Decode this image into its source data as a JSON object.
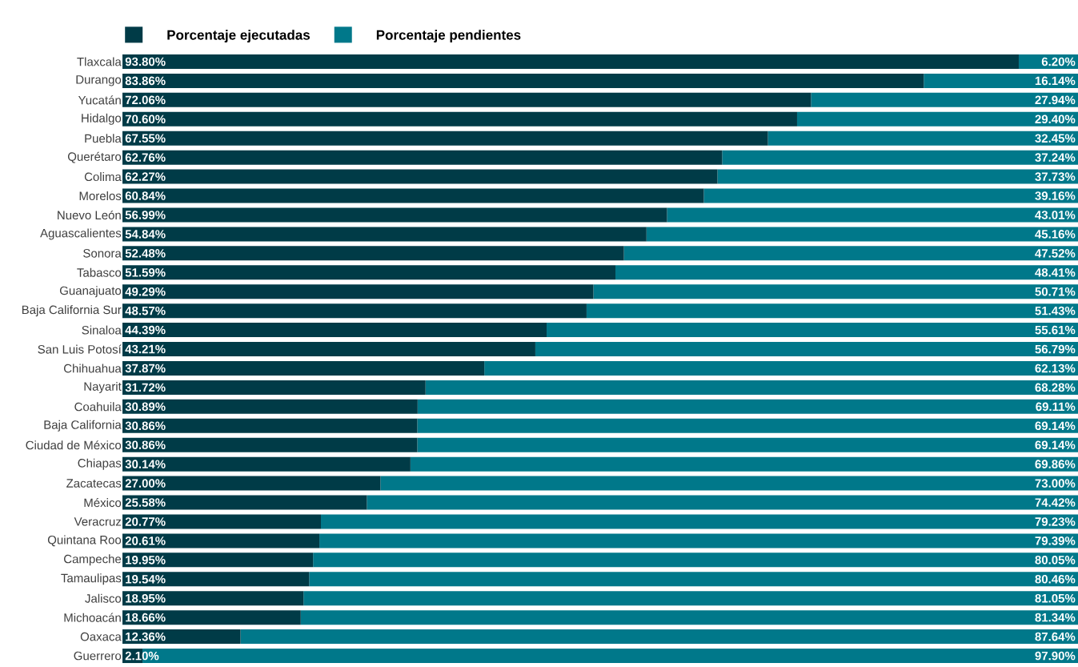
{
  "chart_data": {
    "type": "bar",
    "orientation": "horizontal",
    "stacked": true,
    "legend": "top",
    "tick_labels": "y",
    "xlim": [
      0,
      100
    ],
    "categories": [
      "Tlaxcala",
      "Durango",
      "Yucatán",
      "Hidalgo",
      "Puebla",
      "Querétaro",
      "Colima",
      "Morelos",
      "Nuevo León",
      "Aguascalientes",
      "Sonora",
      "Tabasco",
      "Guanajuato",
      "Baja California Sur",
      "Sinaloa",
      "San Luis Potosí",
      "Chihuahua",
      "Nayarit",
      "Coahuila",
      "Baja California",
      "Ciudad de México",
      "Chiapas",
      "Zacatecas",
      "México",
      "Veracruz",
      "Quintana Roo",
      "Campeche",
      "Tamaulipas",
      "Jalisco",
      "Michoacán",
      "Oaxaca",
      "Guerrero"
    ],
    "series": [
      {
        "name": "Porcentaje ejecutadas",
        "color": "#003b47",
        "values": [
          93.8,
          83.86,
          72.06,
          70.6,
          67.55,
          62.76,
          62.27,
          60.84,
          56.99,
          54.84,
          52.48,
          51.59,
          49.29,
          48.57,
          44.39,
          43.21,
          37.87,
          31.72,
          30.89,
          30.86,
          30.86,
          30.14,
          27.0,
          25.58,
          20.77,
          20.61,
          19.95,
          19.54,
          18.95,
          18.66,
          12.36,
          2.1
        ],
        "value_labels": [
          "93.80%",
          "83.86%",
          "72.06%",
          "70.60%",
          "67.55%",
          "62.76%",
          "62.27%",
          "60.84%",
          "56.99%",
          "54.84%",
          "52.48%",
          "51.59%",
          "49.29%",
          "48.57%",
          "44.39%",
          "43.21%",
          "37.87%",
          "31.72%",
          "30.89%",
          "30.86%",
          "30.86%",
          "30.14%",
          "27.00%",
          "25.58%",
          "20.77%",
          "20.61%",
          "19.95%",
          "19.54%",
          "18.95%",
          "18.66%",
          "12.36%",
          "2.10%"
        ]
      },
      {
        "name": "Porcentaje pendientes",
        "color": "#00788a",
        "values": [
          6.2,
          16.14,
          27.94,
          29.4,
          32.45,
          37.24,
          37.73,
          39.16,
          43.01,
          45.16,
          47.52,
          48.41,
          50.71,
          51.43,
          55.61,
          56.79,
          62.13,
          68.28,
          69.11,
          69.14,
          69.14,
          69.86,
          73.0,
          74.42,
          79.23,
          79.39,
          80.05,
          80.46,
          81.05,
          81.34,
          87.64,
          97.9
        ],
        "value_labels": [
          "6.20%",
          "16.14%",
          "27.94%",
          "29.40%",
          "32.45%",
          "37.24%",
          "37.73%",
          "39.16%",
          "43.01%",
          "45.16%",
          "47.52%",
          "48.41%",
          "50.71%",
          "51.43%",
          "55.61%",
          "56.79%",
          "62.13%",
          "68.28%",
          "69.11%",
          "69.14%",
          "69.14%",
          "69.86%",
          "73.00%",
          "74.42%",
          "79.23%",
          "79.39%",
          "80.05%",
          "80.46%",
          "81.05%",
          "81.34%",
          "87.64%",
          "97.90%"
        ]
      }
    ]
  }
}
